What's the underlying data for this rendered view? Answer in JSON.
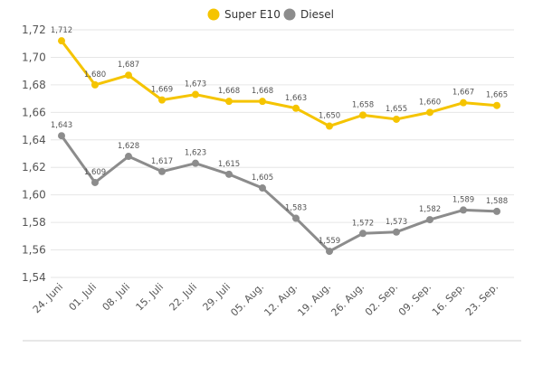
{
  "chart_data": {
    "type": "line",
    "title": "",
    "xlabel": "",
    "ylabel": "",
    "ylim": [
      1.54,
      1.72
    ],
    "yticks": [
      "1,72",
      "1,70",
      "1,68",
      "1,66",
      "1,64",
      "1,62",
      "1,60",
      "1,58",
      "1,56",
      "1,54"
    ],
    "ytick_values": [
      1.72,
      1.7,
      1.68,
      1.66,
      1.64,
      1.62,
      1.6,
      1.58,
      1.56,
      1.54
    ],
    "categories": [
      "24. Juni",
      "01. Juli",
      "08. Juli",
      "15. Juli",
      "22. Juli",
      "29. Juli",
      "05. Aug.",
      "12. Aug.",
      "19. Aug.",
      "26. Aug.",
      "02. Sep.",
      "09. Sep.",
      "16. Sep.",
      "23. Sep."
    ],
    "legend_position": "top-center",
    "grid": true,
    "series": [
      {
        "name": "Super E10",
        "color": "#f5c400",
        "values": [
          1.712,
          1.68,
          1.687,
          1.669,
          1.673,
          1.668,
          1.668,
          1.663,
          1.65,
          1.658,
          1.655,
          1.66,
          1.667,
          1.665
        ],
        "labels": [
          "1,712",
          "1,680",
          "1,687",
          "1,669",
          "1,673",
          "1,668",
          "1,668",
          "1,663",
          "1,650",
          "1,658",
          "1,655",
          "1,660",
          "1,667",
          "1,665"
        ]
      },
      {
        "name": "Diesel",
        "color": "#8c8c8c",
        "values": [
          1.643,
          1.609,
          1.628,
          1.617,
          1.623,
          1.615,
          1.605,
          1.583,
          1.559,
          1.572,
          1.573,
          1.582,
          1.589,
          1.588
        ],
        "labels": [
          "1,643",
          "1,609",
          "1,628",
          "1,617",
          "1,623",
          "1,615",
          "1,605",
          "1,583",
          "1,559",
          "1,572",
          "1,573",
          "1,582",
          "1,589",
          "1,588"
        ]
      }
    ]
  }
}
